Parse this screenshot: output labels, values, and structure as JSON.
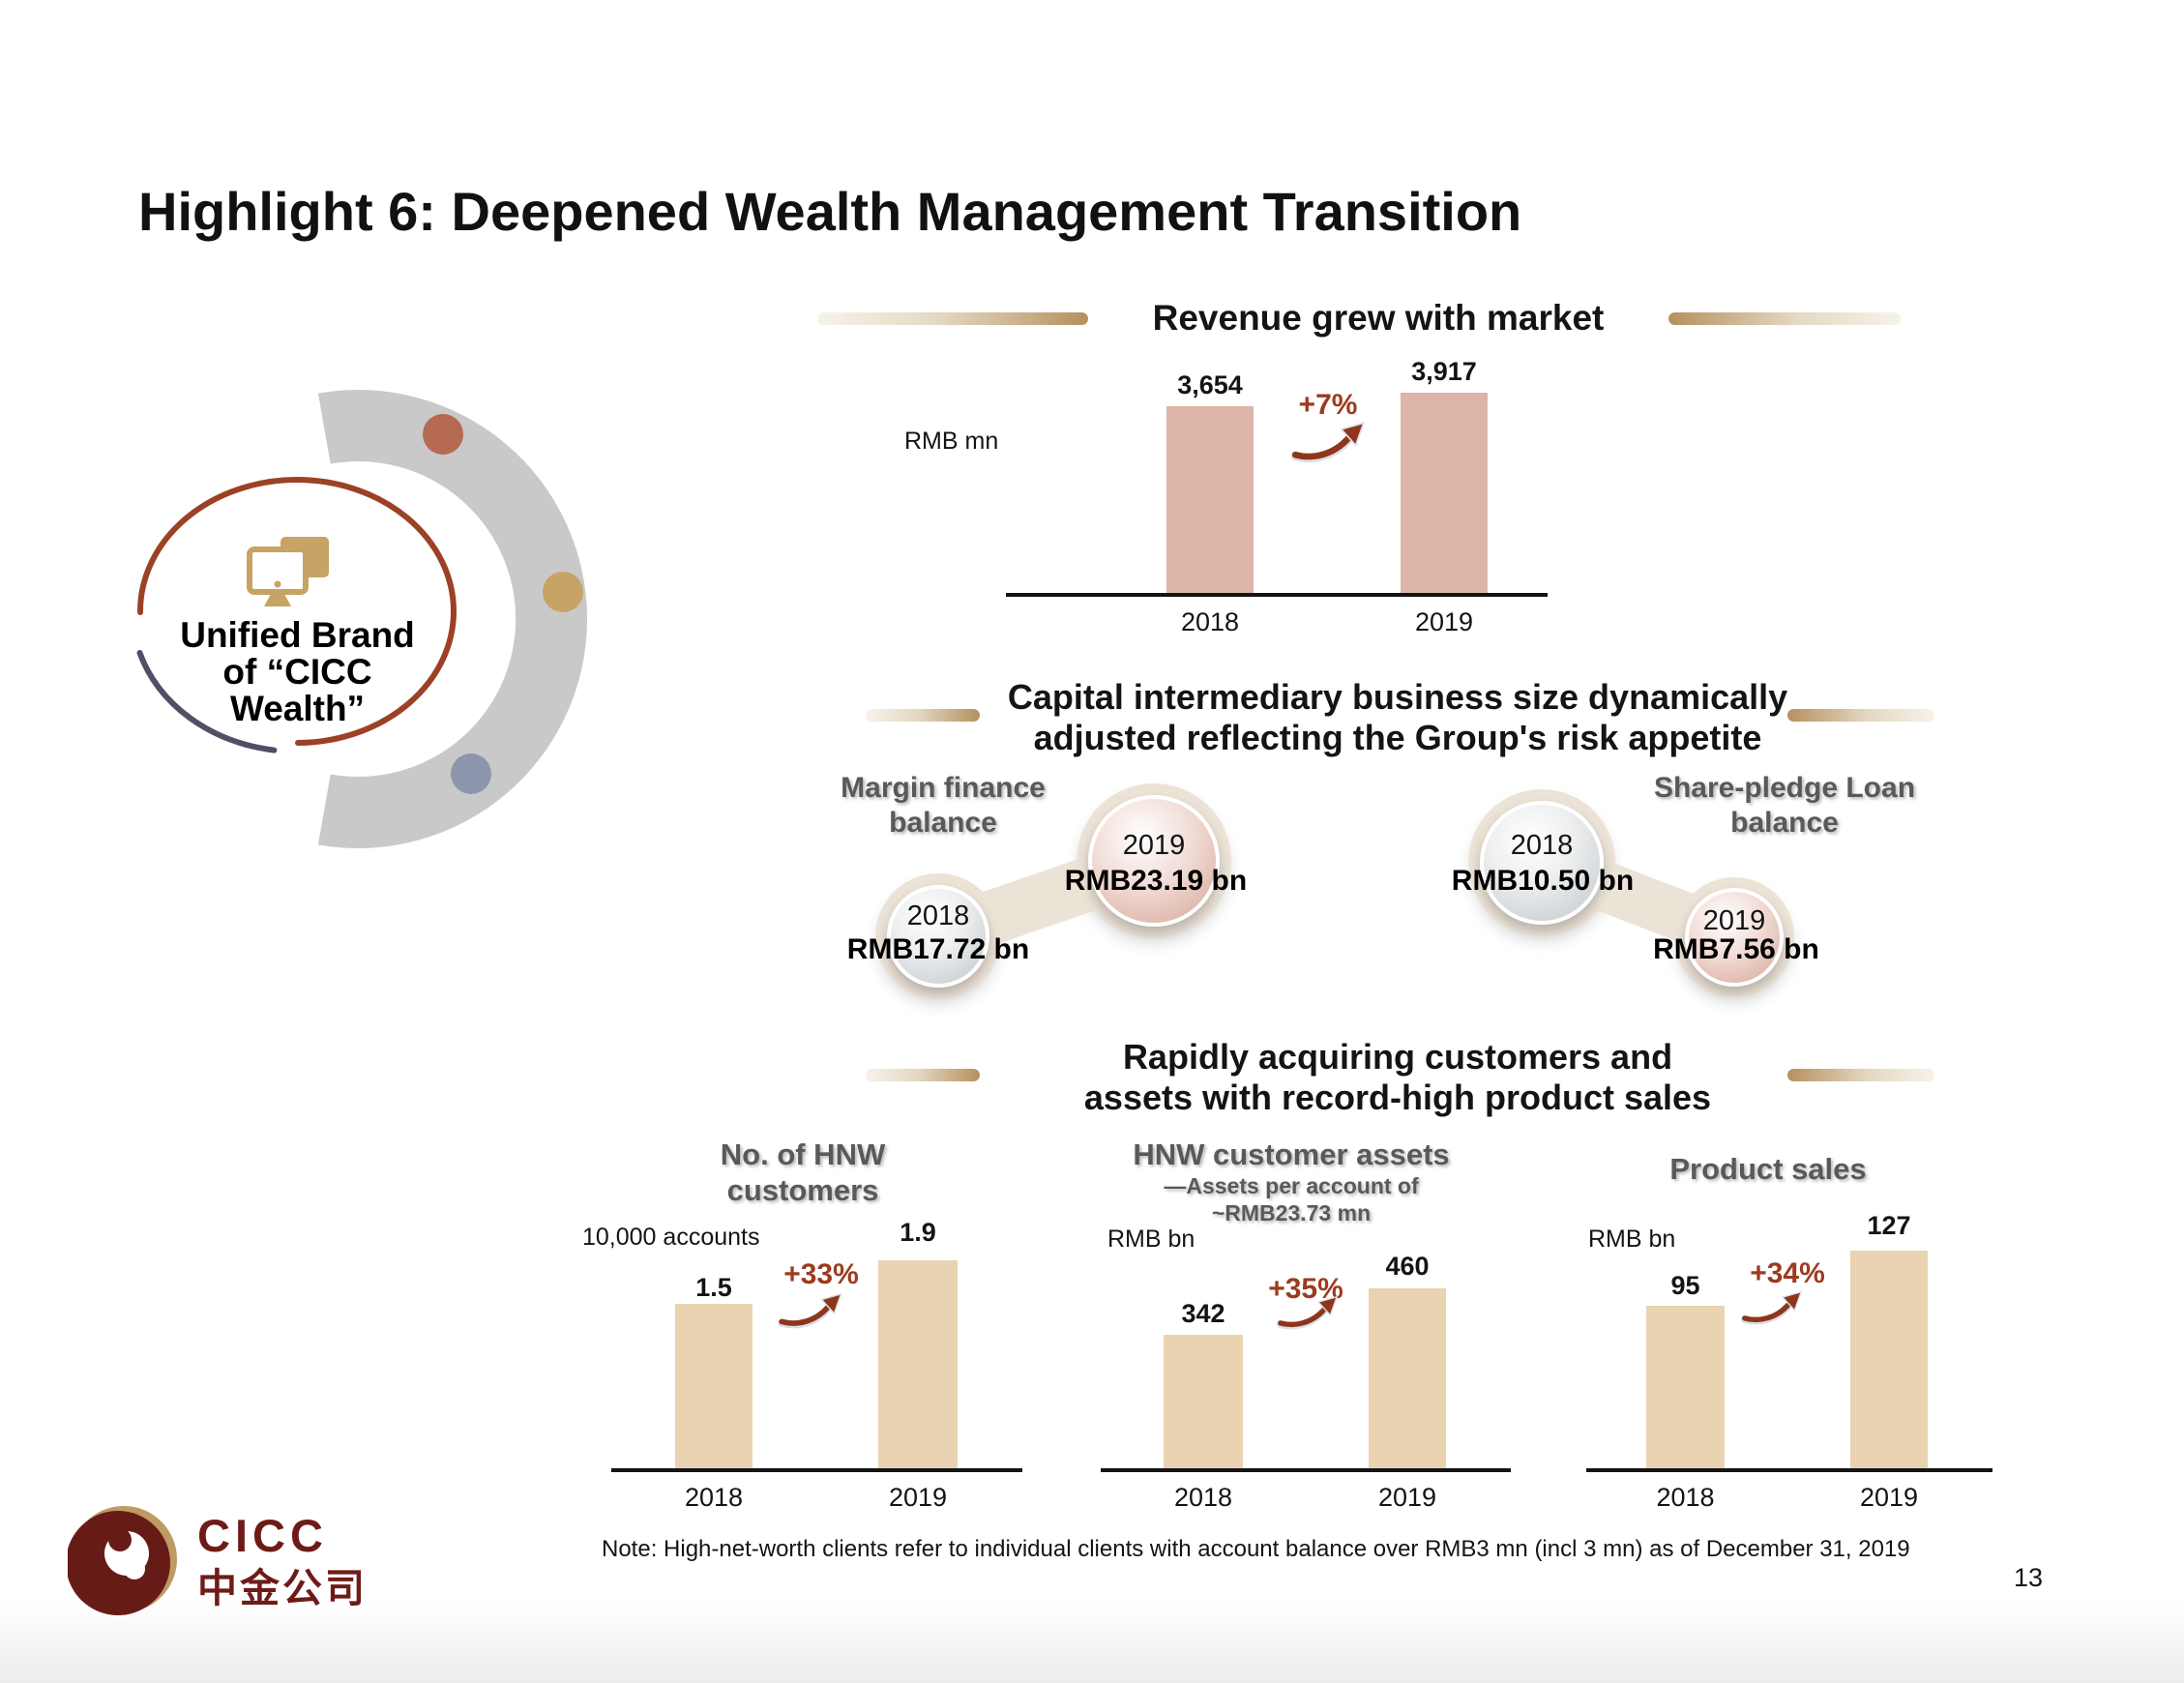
{
  "slide": {
    "title": "Highlight 6: Deepened Wealth Management Transition",
    "note": "Note: High-net-worth clients refer to individual clients with account balance over RMB3 mn (incl 3 mn) as of December 31, 2019",
    "page_number": "13"
  },
  "hero": {
    "lines": [
      "Unified Brand",
      "of “CICC",
      "Wealth”"
    ]
  },
  "brand": {
    "name": "CICC",
    "name_cn": "中金公司"
  },
  "sections": {
    "capital": {
      "title_lines": [
        "Capital intermediary business size dynamically",
        "adjusted reflecting the Group's risk appetite"
      ],
      "margin_label_lines": [
        "Margin finance",
        "balance"
      ],
      "pledge_label_lines": [
        "Share-pledge Loan",
        "balance"
      ]
    },
    "customers": {
      "title_lines": [
        "Rapidly acquiring customers and",
        "assets with record-high product sales"
      ]
    }
  },
  "bottom": {
    "hnw_title_lines": [
      "No. of HNW",
      "customers"
    ],
    "assets_subtitle_lines": [
      "—Assets per account of",
      "~RMB23.73 mn"
    ]
  },
  "colors": {
    "accent_brown": "#9c3b1f",
    "bar_pink": "#dcb5a8",
    "bar_tan": "#e9d3b1",
    "title_gray": "#595959",
    "brand_maroon": "#6e1b18",
    "brand_gold": "#bf9a62",
    "arc_gray": "#c9c9c9",
    "dot_terracotta": "#b66a51",
    "dot_gold": "#c7a365",
    "dot_blue": "#8e96ad"
  },
  "chart_data": [
    {
      "id": "revenue",
      "type": "bar",
      "title": "Revenue grew with market",
      "unit": "RMB mn",
      "categories": [
        "2018",
        "2019"
      ],
      "values": [
        3654,
        3917
      ],
      "value_labels": [
        "3,654",
        "3,917"
      ],
      "growth_label": "+7%"
    },
    {
      "id": "margin_finance_balance",
      "type": "bubble",
      "title": "Margin finance balance",
      "categories": [
        "2018",
        "2019"
      ],
      "values_bn": [
        17.72,
        23.19
      ],
      "value_labels": [
        "RMB17.72 bn",
        "RMB23.19 bn"
      ]
    },
    {
      "id": "share_pledge_loan_balance",
      "type": "bubble",
      "title": "Share-pledge Loan balance",
      "categories": [
        "2018",
        "2019"
      ],
      "values_bn": [
        10.5,
        7.56
      ],
      "value_labels": [
        "RMB10.50 bn",
        "RMB7.56 bn"
      ]
    },
    {
      "id": "hnw_customers",
      "type": "bar",
      "title": "No. of HNW customers",
      "unit": "10,000 accounts",
      "categories": [
        "2018",
        "2019"
      ],
      "values": [
        1.5,
        1.9
      ],
      "value_labels": [
        "1.5",
        "1.9"
      ],
      "growth_label": "+33%"
    },
    {
      "id": "hnw_customer_assets",
      "type": "bar",
      "title": "HNW customer assets",
      "subtitle": "—Assets per account of ~RMB23.73 mn",
      "unit": "RMB bn",
      "categories": [
        "2018",
        "2019"
      ],
      "values": [
        342,
        460
      ],
      "value_labels": [
        "342",
        "460"
      ],
      "growth_label": "+35%"
    },
    {
      "id": "product_sales",
      "type": "bar",
      "title": "Product sales",
      "unit": "RMB bn",
      "categories": [
        "2018",
        "2019"
      ],
      "values": [
        95,
        127
      ],
      "value_labels": [
        "95",
        "127"
      ],
      "growth_label": "+34%"
    }
  ]
}
